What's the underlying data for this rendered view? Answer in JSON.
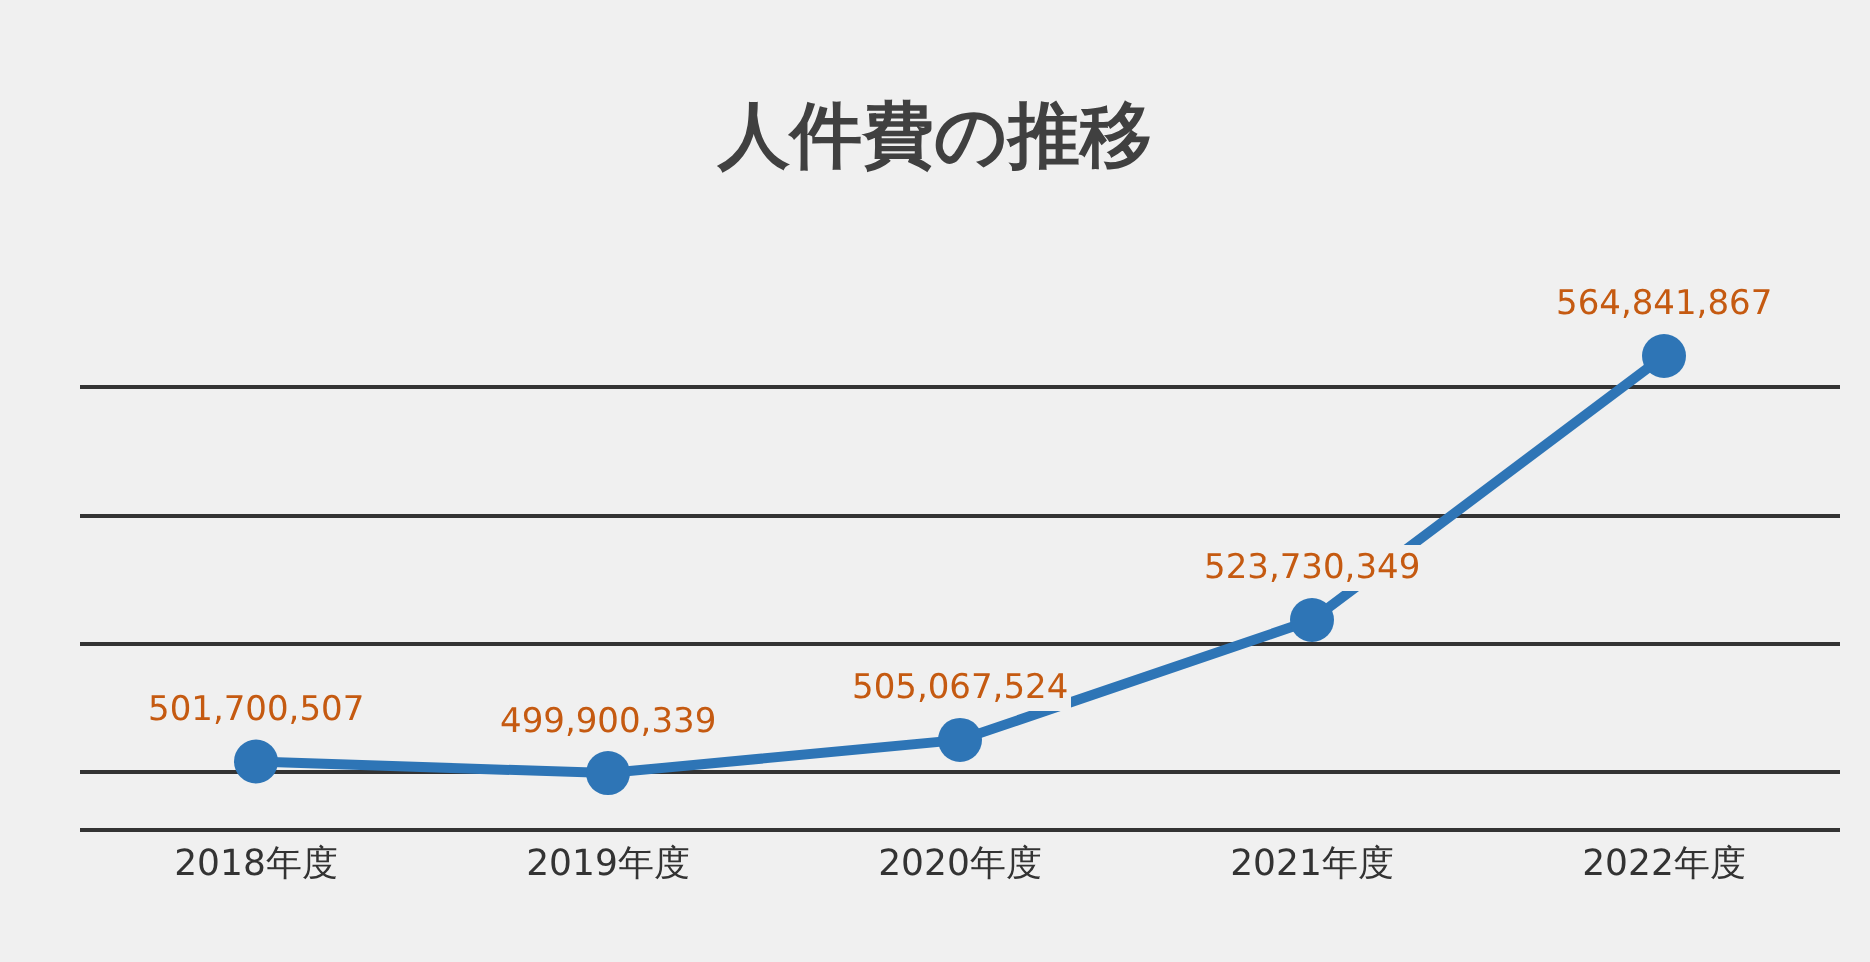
{
  "chart_data": {
    "type": "line",
    "title": "人件費の推移",
    "categories": [
      "2018年度",
      "2019年度",
      "2020年度",
      "2021年度",
      "2022年度"
    ],
    "series": [
      {
        "color": "#2e75b6",
        "values": [
          501700507,
          499900339,
          505067524,
          523730349,
          564841867
        ],
        "value_labels": [
          "501,700,507",
          "499,900,339",
          "505,067,524",
          "523,730,349",
          "564,841,867"
        ]
      }
    ],
    "tick_labels": "x",
    "grid": "y",
    "marker": "circle",
    "line_style": "solid",
    "legend": false
  }
}
